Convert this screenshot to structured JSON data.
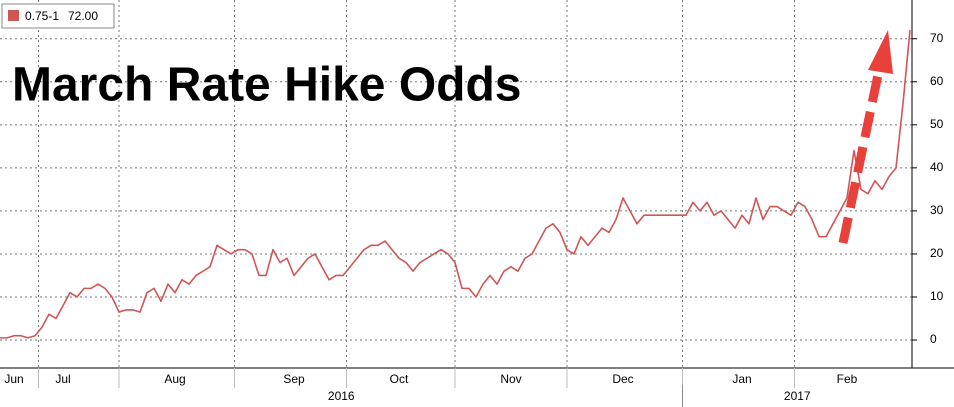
{
  "chart_data": {
    "type": "line",
    "title": "March Rate Hike Odds",
    "categories": [
      null,
      null,
      "Jun",
      null,
      null,
      null,
      null,
      null,
      null,
      "Jul",
      null,
      null,
      null,
      null,
      null,
      null,
      null,
      null,
      null,
      null,
      null,
      null,
      null,
      null,
      null,
      "Aug",
      null,
      null,
      null,
      null,
      null,
      null,
      null,
      null,
      null,
      null,
      null,
      null,
      null,
      null,
      null,
      null,
      "Sep",
      null,
      null,
      null,
      null,
      null,
      null,
      null,
      null,
      null,
      null,
      null,
      null,
      null,
      null,
      "Oct",
      null,
      null,
      null,
      null,
      null,
      null,
      null,
      null,
      null,
      null,
      null,
      null,
      null,
      null,
      null,
      "Nov",
      null,
      null,
      null,
      null,
      null,
      null,
      null,
      null,
      null,
      null,
      null,
      null,
      null,
      null,
      null,
      "Dec",
      null,
      null,
      null,
      null,
      null,
      null,
      null,
      null,
      null,
      null,
      null,
      null,
      null,
      null,
      null,
      null,
      "Jan",
      null,
      null,
      null,
      null,
      null,
      null,
      null,
      null,
      null,
      null,
      null,
      null,
      null,
      null,
      "Feb",
      null,
      null,
      null,
      null,
      null,
      null,
      null,
      null,
      null
    ],
    "year_labels": [
      "2016",
      "2017"
    ],
    "series": [
      {
        "name": "0.75-1",
        "color": "#d05656",
        "last_value_label": "72.00",
        "values": [
          0.5,
          0.5,
          1,
          1,
          0.5,
          1,
          3,
          6,
          5,
          8,
          11,
          10,
          12,
          12,
          13,
          12,
          10,
          6.5,
          7,
          7,
          6.5,
          11,
          12,
          9,
          13,
          11,
          14,
          13,
          15,
          16,
          17,
          22,
          21,
          20,
          21,
          21,
          20,
          15,
          15,
          21,
          18,
          19,
          15,
          17,
          19,
          20,
          17,
          14,
          15,
          15,
          17,
          19,
          21,
          22,
          22,
          23,
          21,
          19,
          18,
          16,
          18,
          19,
          20,
          21,
          20,
          18,
          12,
          12,
          10,
          13,
          15,
          13,
          16,
          17,
          16,
          19,
          20,
          23,
          26,
          27,
          25,
          21,
          20,
          24,
          22,
          24,
          26,
          25,
          28,
          33,
          30,
          27,
          29,
          29,
          29,
          29,
          29,
          29,
          29,
          32,
          30,
          32,
          29,
          30,
          28,
          26,
          29,
          27,
          33,
          28,
          31,
          31,
          30,
          29,
          32,
          31,
          28,
          24,
          24,
          27,
          30,
          33,
          44,
          35,
          34,
          37,
          35,
          38,
          40,
          55,
          72
        ]
      }
    ],
    "ylim": [
      -6.5,
      79
    ],
    "yticks": [
      0,
      10,
      20,
      30,
      40,
      50,
      60,
      70
    ],
    "grid": true
  }
}
